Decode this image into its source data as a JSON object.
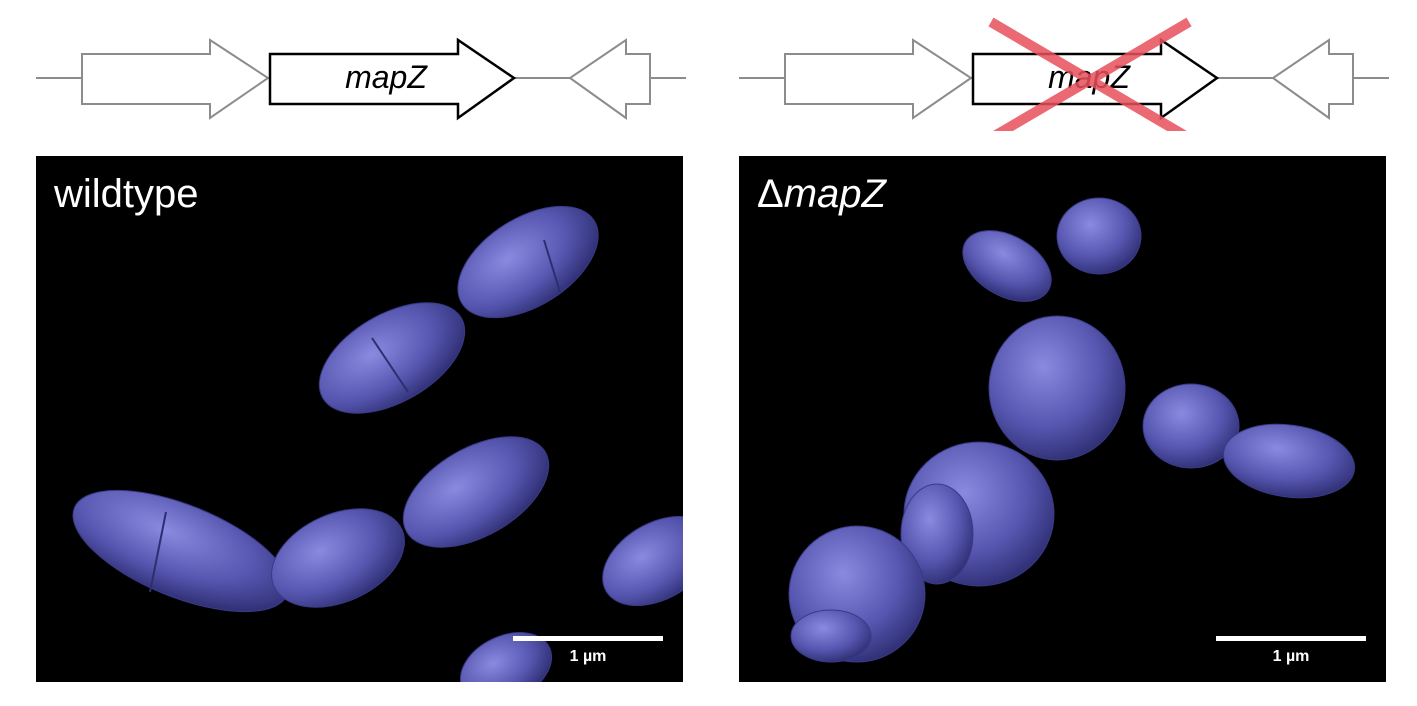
{
  "panels": [
    {
      "gene_label": "mapZ",
      "deleted": false,
      "image_label_prefix": "",
      "image_label": "wildtype",
      "scale_bar": "1 µm"
    },
    {
      "gene_label": "mapZ",
      "deleted": true,
      "image_label_prefix": "Δ",
      "image_label": "mapZ",
      "scale_bar": "1 µm"
    }
  ],
  "colors": {
    "flank_arrow": "#8c8c8c",
    "target_arrow": "#000000",
    "deletion_cross": "#e8505b",
    "cell_fill": "#5a5ab4",
    "background": "#000000"
  }
}
